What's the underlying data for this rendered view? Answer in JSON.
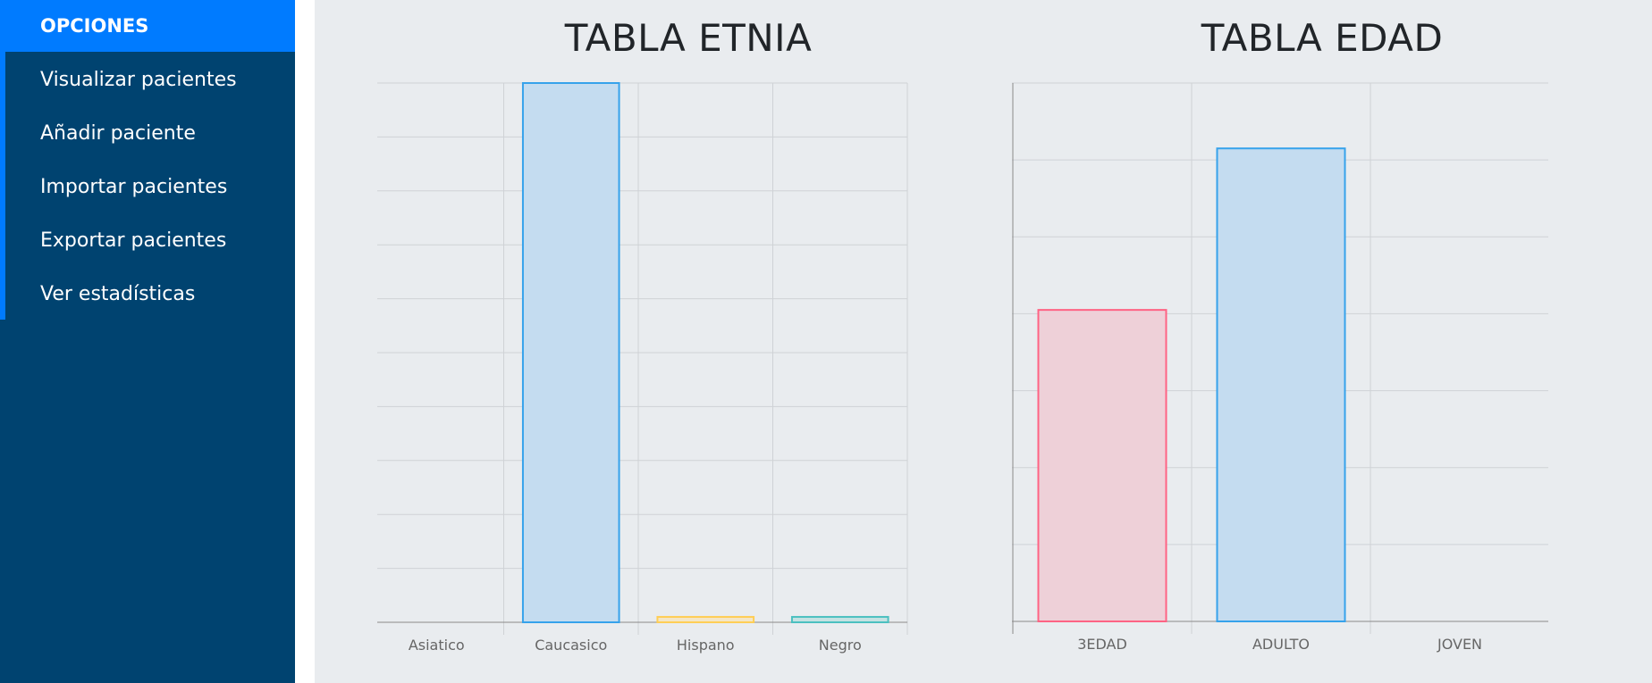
{
  "sidebar": {
    "header": "OPCIONES",
    "items": [
      {
        "label": "Visualizar pacientes"
      },
      {
        "label": "Añadir paciente"
      },
      {
        "label": "Importar pacientes"
      },
      {
        "label": "Exportar pacientes"
      },
      {
        "label": "Ver estadísticas"
      }
    ]
  },
  "colors": {
    "sidebar_bg": "#004370",
    "accent": "#007bff",
    "main_bg": "#e9ecef"
  },
  "chart_data": [
    {
      "type": "bar",
      "title": "TABLA ETNIA",
      "categories": [
        "Asiatico",
        "Caucasico",
        "Hispano",
        "Negro"
      ],
      "values": [
        0,
        200,
        2,
        2
      ],
      "ylim": [
        0,
        200
      ],
      "yticks": [
        0,
        20,
        40,
        60,
        80,
        100,
        120,
        140,
        160,
        180,
        200
      ],
      "bar_fill": [
        "#ffd0d9",
        "#c4dcf0",
        "#f4e6c6",
        "#c5e2e2"
      ],
      "bar_stroke": [
        "#ff6384",
        "#36a2eb",
        "#ffce56",
        "#4bc0c0"
      ],
      "grid": true,
      "legend": "none"
    },
    {
      "type": "bar",
      "title": "TABLA EDAD",
      "categories": [
        "3EDAD",
        "ADULTO",
        "JOVEN"
      ],
      "values": [
        81,
        123,
        0
      ],
      "ylim": [
        0,
        140
      ],
      "yticks": [
        0,
        20,
        40,
        60,
        80,
        100,
        120,
        140
      ],
      "bar_fill": [
        "#eed0d8",
        "#c4dcf0",
        "#c5e2e2"
      ],
      "bar_stroke": [
        "#ff6384",
        "#36a2eb",
        "#4bc0c0"
      ],
      "grid": true,
      "legend": "none"
    }
  ]
}
